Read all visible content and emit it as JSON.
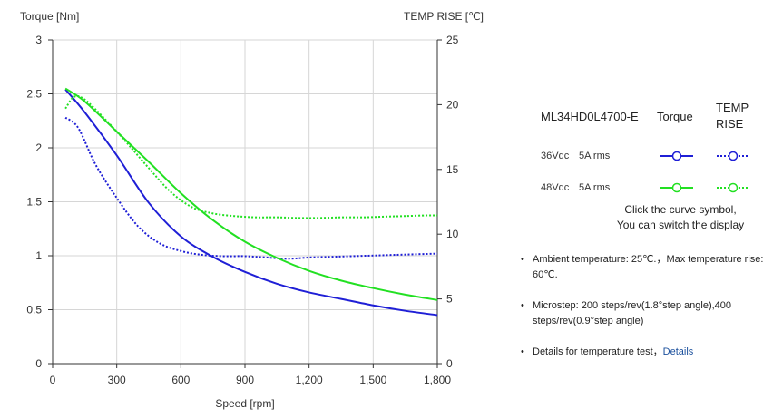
{
  "chart_data": {
    "type": "line",
    "xlabel": "Speed [rpm]",
    "ylabel_left": "Torque  [Nm]",
    "ylabel_right": "TEMP RISE [℃]",
    "xlim": [
      0,
      1800
    ],
    "ylim_left": [
      0,
      3
    ],
    "ylim_right": [
      0,
      25
    ],
    "x_ticks": [
      "0",
      "300",
      "600",
      "900",
      "1,200",
      "1,500",
      "1,800"
    ],
    "x_tick_values": [
      0,
      300,
      600,
      900,
      1200,
      1500,
      1800
    ],
    "y_left_ticks": [
      "0",
      "0.5",
      "1",
      "1.5",
      "2",
      "2.5",
      "3"
    ],
    "y_left_tick_values": [
      0,
      0.5,
      1,
      1.5,
      2,
      2.5,
      3
    ],
    "y_right_ticks": [
      "0",
      "5",
      "10",
      "15",
      "20",
      "25"
    ],
    "y_right_tick_values": [
      0,
      5,
      10,
      15,
      20,
      25
    ],
    "grid": true,
    "series": [
      {
        "name": "36Vdc 5A rms Torque",
        "axis": "left",
        "color": "#1f1fd6",
        "style": "solid",
        "x": [
          60,
          150,
          300,
          450,
          600,
          750,
          900,
          1050,
          1200,
          1350,
          1500,
          1650,
          1800
        ],
        "y": [
          2.54,
          2.33,
          1.93,
          1.49,
          1.18,
          0.99,
          0.85,
          0.74,
          0.66,
          0.6,
          0.54,
          0.49,
          0.45
        ]
      },
      {
        "name": "36Vdc 5A rms TEMP RISE",
        "axis": "right",
        "color": "#1f1fd6",
        "style": "dotted",
        "x": [
          60,
          120,
          200,
          300,
          400,
          500,
          600,
          700,
          800,
          900,
          1000,
          1100,
          1200,
          1300,
          1400,
          1500,
          1600,
          1700,
          1800
        ],
        "y": [
          19.0,
          18.2,
          15.4,
          12.8,
          10.6,
          9.3,
          8.7,
          8.4,
          8.3,
          8.3,
          8.2,
          8.1,
          8.2,
          8.25,
          8.3,
          8.35,
          8.4,
          8.45,
          8.5
        ]
      },
      {
        "name": "48Vdc 5A rms Torque",
        "axis": "left",
        "color": "#22e022",
        "style": "solid",
        "x": [
          60,
          150,
          300,
          450,
          600,
          750,
          900,
          1050,
          1200,
          1350,
          1500,
          1650,
          1800
        ],
        "y": [
          2.55,
          2.43,
          2.15,
          1.87,
          1.58,
          1.33,
          1.13,
          0.98,
          0.86,
          0.77,
          0.7,
          0.64,
          0.59
        ]
      },
      {
        "name": "48Vdc 5A rms TEMP RISE",
        "axis": "right",
        "color": "#22e022",
        "style": "dotted",
        "x": [
          60,
          100,
          150,
          250,
          350,
          450,
          550,
          650,
          750,
          850,
          950,
          1050,
          1150,
          1250,
          1350,
          1450,
          1550,
          1650,
          1750,
          1800
        ],
        "y": [
          19.7,
          20.6,
          20.4,
          18.8,
          17.0,
          15.1,
          13.3,
          12.1,
          11.6,
          11.4,
          11.3,
          11.3,
          11.25,
          11.25,
          11.3,
          11.3,
          11.35,
          11.4,
          11.45,
          11.45
        ]
      }
    ]
  },
  "panel": {
    "model": "ML34HD0L4700-E",
    "col_torque": "Torque",
    "col_temp_line1": "TEMP",
    "col_temp_line2": "RISE",
    "rows": [
      {
        "voltage": "36Vdc",
        "current": "5A rms",
        "color": "#1f1fd6"
      },
      {
        "voltage": "48Vdc",
        "current": "5A rms",
        "color": "#22e022"
      }
    ],
    "hint_line1": "Click the curve symbol,",
    "hint_line2": "You can switch the display",
    "notes": [
      "Ambient temperature: 25℃.，Max temperature rise: 60℃.",
      "Microstep: 200 steps/rev(1.8°step angle),400 steps/rev(0.9°step angle)",
      "Details for temperature test，"
    ],
    "details_link": "Details"
  }
}
